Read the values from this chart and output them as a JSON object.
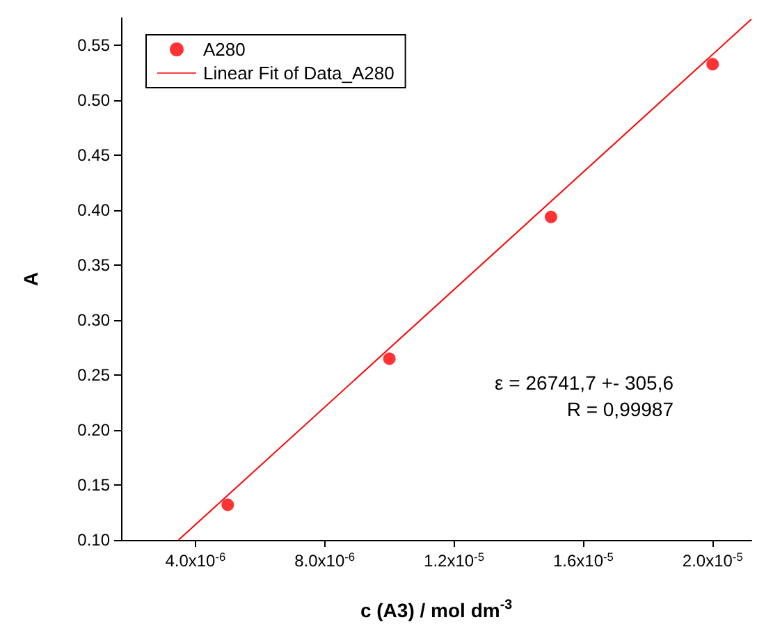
{
  "chart_data": {
    "type": "scatter",
    "xlabel": "c (A3) / mol dm$^{-3}$",
    "ylabel": "A",
    "xlim": [
      1.7e-06,
      2.12e-05
    ],
    "ylim": [
      0.1,
      0.575
    ],
    "xticks": [
      {
        "value": 4e-06,
        "label": "4.0x10$^{-6}$"
      },
      {
        "value": 8e-06,
        "label": "8.0x10$^{-6}$"
      },
      {
        "value": 1.2e-05,
        "label": "1.2x10$^{-5}$"
      },
      {
        "value": 1.6e-05,
        "label": "1.6x10$^{-5}$"
      },
      {
        "value": 2e-05,
        "label": "2.0x10$^{-5}$"
      }
    ],
    "yticks": [
      {
        "value": 0.1,
        "label": "0.10"
      },
      {
        "value": 0.15,
        "label": "0.15"
      },
      {
        "value": 0.2,
        "label": "0.20"
      },
      {
        "value": 0.25,
        "label": "0.25"
      },
      {
        "value": 0.3,
        "label": "0.30"
      },
      {
        "value": 0.35,
        "label": "0.35"
      },
      {
        "value": 0.4,
        "label": "0.40"
      },
      {
        "value": 0.45,
        "label": "0.45"
      },
      {
        "value": 0.5,
        "label": "0.50"
      },
      {
        "value": 0.55,
        "label": "0.55"
      }
    ],
    "x": [
      5e-06,
      1e-05,
      1.5e-05,
      2e-05
    ],
    "series": [
      {
        "name": "A280",
        "color": "#ff0000",
        "marker": "circle",
        "values": [
          0.132,
          0.265,
          0.394,
          0.533
        ]
      },
      {
        "name": "Linear Fit of Data_A280",
        "type": "line",
        "color": "#ff0000",
        "marker": "none",
        "line_style": "solid",
        "x": [
          3.48e-06,
          2.12e-05
        ],
        "values": [
          0.1,
          0.574
        ]
      }
    ],
    "annotations": [
      "ε = 26741,7 +- 305,6",
      "R = 0,99987"
    ],
    "legend": "top left",
    "grid": false
  }
}
